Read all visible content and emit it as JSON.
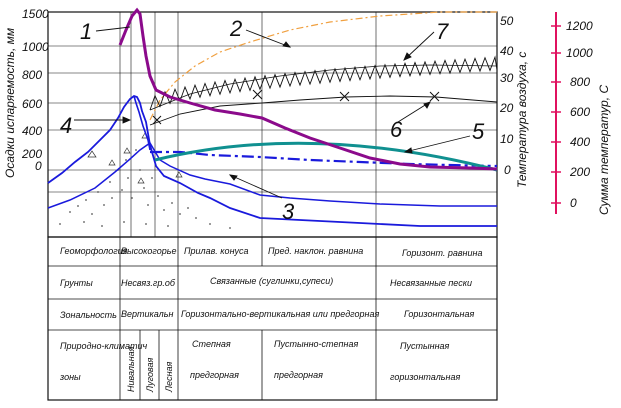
{
  "left_axis": {
    "label": "Осадки испаряемость, мм",
    "ticks": [
      "1500",
      "1000",
      "800",
      "600",
      "400",
      "200",
      "0"
    ]
  },
  "right_axis_1": {
    "label": "Температура воздуха, с",
    "ticks": [
      "50",
      "40",
      "30",
      "20",
      "10",
      "0"
    ]
  },
  "right_axis_2": {
    "label": "Сумма температур, С",
    "ticks": [
      "1200",
      "1000",
      "800",
      "600",
      "400",
      "200",
      "0"
    ],
    "color": "#e0115f"
  },
  "curve_labels": [
    "1",
    "2",
    "3",
    "4",
    "5",
    "6",
    "7"
  ],
  "colors": {
    "precipitation": "#8b0a8b",
    "evaporation": "#f0a040",
    "relief": "#1a1adc",
    "green_curve": "#109090",
    "black": "#111111"
  },
  "table": {
    "rows": [
      {
        "header": "Геоморфология",
        "cells": [
          "Высокогорье",
          "Прилав. конуса",
          "Пред. наклон. равнина",
          "Горизонт. равнина"
        ]
      },
      {
        "header": "Грунты",
        "cells": [
          "Несвяз.гр.об",
          "Связанные (суглинки,супеси)",
          "Несвязанные пески"
        ]
      },
      {
        "header": "Зональность",
        "cells": [
          "Вертикальн",
          "Горизонтально-вертикальная или предгорная",
          "Горизонтальная"
        ]
      },
      {
        "header": "Природно-климатич зоны",
        "header_lines": [
          "Природно-климатич",
          "зоны"
        ],
        "vertical_cells": [
          "Нивальная",
          "Луговая",
          "Лесная"
        ],
        "cells": [
          {
            "lines": [
              "Степная",
              "предгорная"
            ]
          },
          {
            "lines": [
              "Пустынно-степная",
              "предгорная"
            ]
          },
          {
            "lines": [
              "Пустынная",
              "горизонтальная"
            ]
          }
        ]
      }
    ]
  }
}
